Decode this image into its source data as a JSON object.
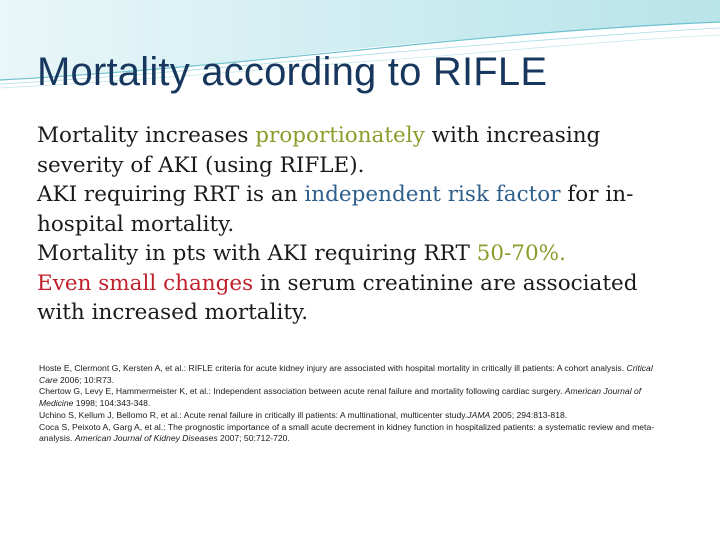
{
  "title": "Mortality according to RIFLE",
  "colors": {
    "title": "#17375e",
    "proportionately": "#8c9c2c",
    "independent_risk_factor": "#2c5f8c",
    "even_small_changes": "#c0202b",
    "header_wave": "#8fd3dc"
  },
  "bullets": {
    "b1_pre": "Mortality increases ",
    "b1_hl": "proportionately",
    "b1_post": " with increasing severity of AKI (using RIFLE).",
    "b2_pre": " AKI requiring RRT is an ",
    "b2_hl": "independent risk factor",
    "b2_post": " for in-hospital mortality.",
    "b3_pre": "Mortality in pts with AKI requiring RRT ",
    "b3_hl": "50-70%.",
    "b4_hl": "Even small changes",
    "b4_post": " in serum creatinine are associated with increased mortality."
  },
  "references": {
    "r1_text": "Hoste E, Clermont G, Kersten A, et al.: RIFLE criteria for acute kidney injury are associated with hospital mortality in critically ill patients: A cohort analysis. ",
    "r1_journal": "Critical Care",
    "r1_tail": " 2006; 10:R73.",
    "r2_text": "Chertow G, Levy E, Hammermeister K, et al.: Independent association between acute renal failure and mortality following cardiac surgery. ",
    "r2_journal": "American Journal of Medicine",
    "r2_tail": " 1998; 104:343-348.",
    "r3_text": " Uchino S, Kellum J, Bellomo R, et al.: Acute renal failure in critically ill patients: A multinational, multicenter study.",
    "r3_journal": "JAMA",
    "r3_tail": " 2005; 294:813-818.",
    "r4_text": "Coca S, Peixoto A, Garg A, et al.: The prognostic importance of a small acute decrement in kidney function in hospitalized patients: a systematic review and meta-analysis. ",
    "r4_journal": "American Journal of Kidney Diseases",
    "r4_tail": " 2007; 50:712-720."
  }
}
